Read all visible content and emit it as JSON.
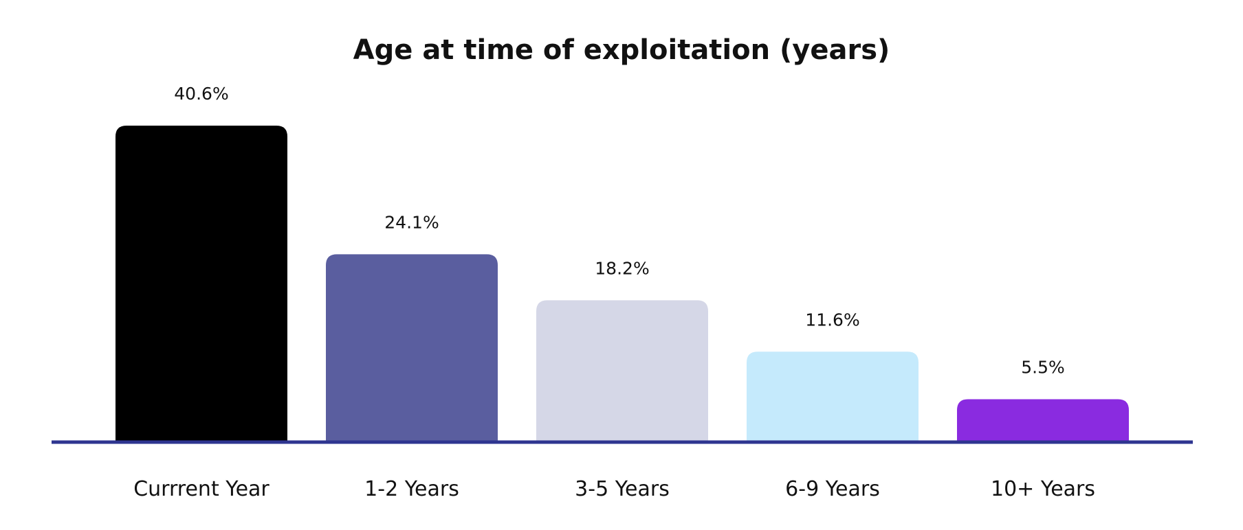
{
  "chart_data": {
    "type": "bar",
    "title": "Age at time of exploitation (years)",
    "xlabel": "",
    "ylabel": "",
    "categories": [
      "Currrent Year",
      "1-2 Years",
      "3-5 Years",
      "6-9 Years",
      "10+ Years"
    ],
    "values": [
      40.6,
      24.1,
      18.2,
      11.6,
      5.5
    ],
    "value_labels": [
      "40.6%",
      "24.1%",
      "18.2%",
      "11.6%",
      "5.5%"
    ],
    "colors": [
      "#000000",
      "#5a5e9f",
      "#d5d7e7",
      "#c5eafc",
      "#8a2be0"
    ],
    "baseline_color": "#2e3590",
    "ylim": [
      0,
      40.6
    ],
    "grid": false,
    "legend": "none"
  }
}
